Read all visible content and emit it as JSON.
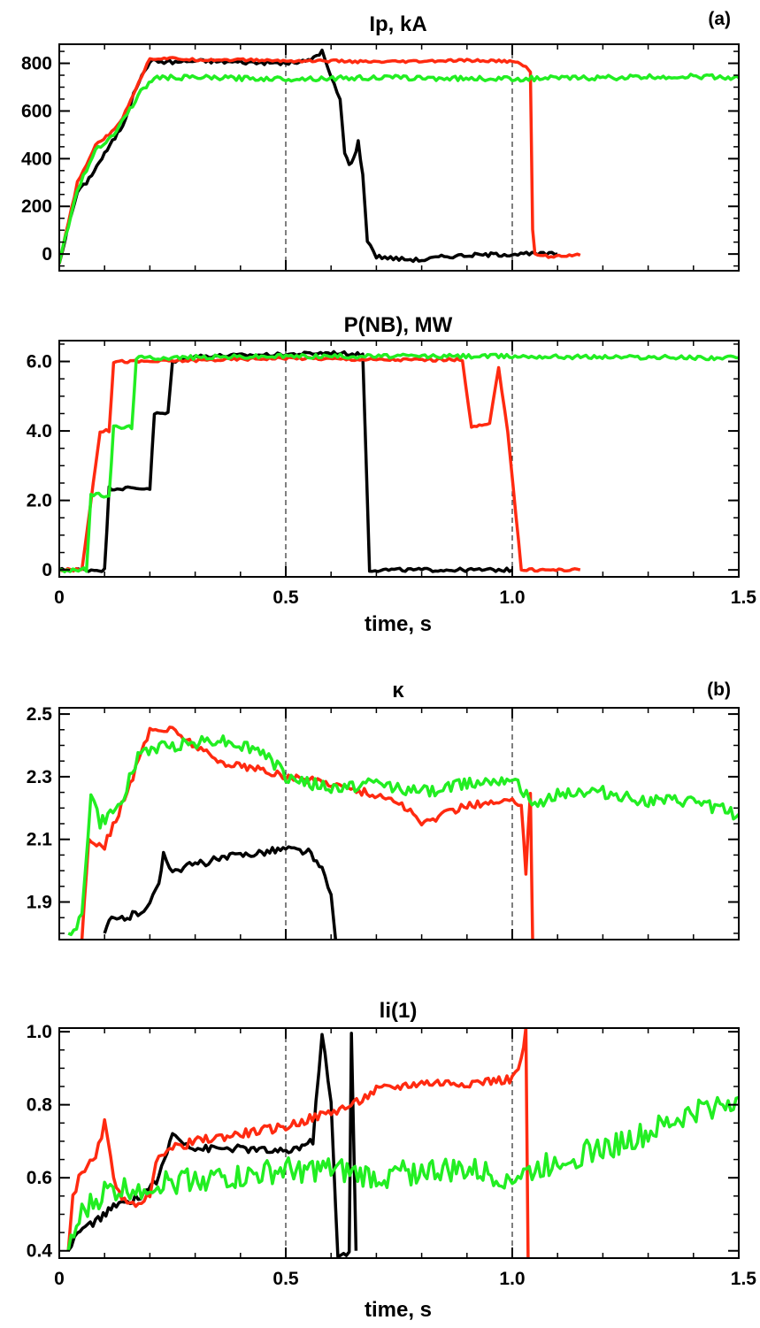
{
  "colors": {
    "black": "#000000",
    "red": "#ff2a10",
    "green": "#22ee22"
  },
  "groups": [
    {
      "label": "(a)",
      "xlabel": "time, s"
    },
    {
      "label": "(b)",
      "xlabel": "time, s"
    }
  ],
  "chart_data": [
    {
      "type": "line",
      "title": "Ip, kA",
      "xlim": [
        0,
        1.5
      ],
      "ylim": [
        -70,
        880
      ],
      "yticks": [
        0,
        200,
        400,
        600,
        800
      ],
      "ytick_labels": [
        "0",
        "200",
        "400",
        "600",
        "800"
      ],
      "xticks": [
        0,
        0.5,
        1.0,
        1.5
      ],
      "xtick_labels": [],
      "vlines": [
        0.5,
        1.0
      ],
      "series": [
        {
          "color": "black",
          "noise": 8,
          "points": [
            [
              0,
              -40
            ],
            [
              0.02,
              120
            ],
            [
              0.04,
              260
            ],
            [
              0.06,
              300
            ],
            [
              0.1,
              420
            ],
            [
              0.14,
              540
            ],
            [
              0.17,
              700
            ],
            [
              0.2,
              810
            ],
            [
              0.25,
              805
            ],
            [
              0.3,
              810
            ],
            [
              0.4,
              805
            ],
            [
              0.5,
              800
            ],
            [
              0.55,
              810
            ],
            [
              0.58,
              850
            ],
            [
              0.6,
              740
            ],
            [
              0.62,
              650
            ],
            [
              0.63,
              420
            ],
            [
              0.64,
              380
            ],
            [
              0.65,
              400
            ],
            [
              0.66,
              470
            ],
            [
              0.67,
              330
            ],
            [
              0.68,
              60
            ],
            [
              0.7,
              -10
            ],
            [
              0.75,
              -20
            ],
            [
              0.8,
              -25
            ],
            [
              0.85,
              -10
            ],
            [
              0.9,
              -5
            ],
            [
              1.0,
              0
            ],
            [
              1.05,
              0
            ],
            [
              1.1,
              0
            ]
          ]
        },
        {
          "color": "red",
          "noise": 5,
          "points": [
            [
              0,
              -40
            ],
            [
              0.02,
              130
            ],
            [
              0.04,
              300
            ],
            [
              0.06,
              370
            ],
            [
              0.08,
              460
            ],
            [
              0.11,
              500
            ],
            [
              0.14,
              570
            ],
            [
              0.17,
              700
            ],
            [
              0.2,
              820
            ],
            [
              0.25,
              820
            ],
            [
              0.3,
              815
            ],
            [
              0.4,
              815
            ],
            [
              0.5,
              810
            ],
            [
              0.6,
              810
            ],
            [
              0.7,
              805
            ],
            [
              0.8,
              808
            ],
            [
              0.9,
              812
            ],
            [
              1.0,
              808
            ],
            [
              1.03,
              790
            ],
            [
              1.04,
              760
            ],
            [
              1.045,
              100
            ],
            [
              1.05,
              0
            ],
            [
              1.08,
              -10
            ],
            [
              1.12,
              -5
            ],
            [
              1.15,
              -5
            ]
          ]
        },
        {
          "color": "green",
          "noise": 10,
          "points": [
            [
              0,
              -40
            ],
            [
              0.02,
              120
            ],
            [
              0.04,
              270
            ],
            [
              0.06,
              350
            ],
            [
              0.08,
              440
            ],
            [
              0.12,
              500
            ],
            [
              0.15,
              590
            ],
            [
              0.18,
              680
            ],
            [
              0.21,
              740
            ],
            [
              0.3,
              740
            ],
            [
              0.5,
              735
            ],
            [
              0.7,
              740
            ],
            [
              1.0,
              735
            ],
            [
              1.2,
              740
            ],
            [
              1.4,
              745
            ],
            [
              1.5,
              740
            ]
          ]
        }
      ]
    },
    {
      "type": "line",
      "title": "P(NB), MW",
      "xlim": [
        0,
        1.5
      ],
      "ylim": [
        -0.2,
        6.6
      ],
      "yticks": [
        0,
        2.0,
        4.0,
        6.0
      ],
      "ytick_labels": [
        "0",
        "2.0",
        "4.0",
        "6.0"
      ],
      "xticks": [
        0,
        0.5,
        1.0,
        1.5
      ],
      "xtick_labels": [
        "0",
        "0.5",
        "1.0",
        "1.5"
      ],
      "vlines": [
        0.5,
        1.0
      ],
      "series": [
        {
          "color": "black",
          "noise": 0.05,
          "points": [
            [
              0,
              0
            ],
            [
              0.1,
              0
            ],
            [
              0.11,
              2.35
            ],
            [
              0.2,
              2.35
            ],
            [
              0.21,
              4.5
            ],
            [
              0.24,
              4.5
            ],
            [
              0.25,
              6.0
            ],
            [
              0.3,
              6.15
            ],
            [
              0.5,
              6.2
            ],
            [
              0.6,
              6.25
            ],
            [
              0.67,
              6.2
            ],
            [
              0.685,
              0
            ],
            [
              0.8,
              0
            ],
            [
              1.0,
              0
            ]
          ]
        },
        {
          "color": "red",
          "noise": 0.04,
          "points": [
            [
              0,
              0
            ],
            [
              0.05,
              0
            ],
            [
              0.07,
              2.0
            ],
            [
              0.08,
              3.0
            ],
            [
              0.09,
              4.0
            ],
            [
              0.11,
              4.0
            ],
            [
              0.12,
              6.0
            ],
            [
              0.2,
              6.0
            ],
            [
              0.5,
              6.1
            ],
            [
              0.7,
              6.05
            ],
            [
              0.89,
              6.05
            ],
            [
              0.91,
              4.1
            ],
            [
              0.95,
              4.2
            ],
            [
              0.97,
              5.8
            ],
            [
              0.99,
              4.0
            ],
            [
              1.02,
              0
            ],
            [
              1.15,
              0
            ]
          ]
        },
        {
          "color": "green",
          "noise": 0.06,
          "points": [
            [
              0,
              0
            ],
            [
              0.06,
              0
            ],
            [
              0.07,
              2.15
            ],
            [
              0.11,
              2.15
            ],
            [
              0.12,
              4.1
            ],
            [
              0.16,
              4.1
            ],
            [
              0.17,
              6.1
            ],
            [
              0.5,
              6.15
            ],
            [
              1.0,
              6.15
            ],
            [
              1.5,
              6.1
            ]
          ]
        }
      ]
    },
    {
      "type": "line",
      "title": "κ",
      "xlim": [
        0,
        1.5
      ],
      "ylim": [
        1.78,
        2.52
      ],
      "yticks": [
        1.9,
        2.1,
        2.3,
        2.5
      ],
      "ytick_labels": [
        "1.9",
        "2.1",
        "2.3",
        "2.5"
      ],
      "xticks": [
        0,
        0.5,
        1.0,
        1.5
      ],
      "xtick_labels": [],
      "vlines": [
        0.5,
        1.0
      ],
      "series": [
        {
          "color": "black",
          "noise": 0.012,
          "points": [
            [
              0.1,
              1.8
            ],
            [
              0.11,
              1.84
            ],
            [
              0.15,
              1.85
            ],
            [
              0.18,
              1.87
            ],
            [
              0.2,
              1.9
            ],
            [
              0.22,
              1.95
            ],
            [
              0.23,
              2.06
            ],
            [
              0.25,
              2.0
            ],
            [
              0.3,
              2.02
            ],
            [
              0.4,
              2.05
            ],
            [
              0.5,
              2.07
            ],
            [
              0.55,
              2.06
            ],
            [
              0.58,
              2.0
            ],
            [
              0.6,
              1.92
            ],
            [
              0.61,
              1.78
            ]
          ]
        },
        {
          "color": "red",
          "noise": 0.012,
          "points": [
            [
              0.05,
              1.78
            ],
            [
              0.065,
              2.1
            ],
            [
              0.1,
              2.08
            ],
            [
              0.15,
              2.25
            ],
            [
              0.2,
              2.45
            ],
            [
              0.25,
              2.45
            ],
            [
              0.3,
              2.4
            ],
            [
              0.35,
              2.35
            ],
            [
              0.45,
              2.32
            ],
            [
              0.5,
              2.3
            ],
            [
              0.6,
              2.28
            ],
            [
              0.65,
              2.26
            ],
            [
              0.75,
              2.22
            ],
            [
              0.8,
              2.15
            ],
            [
              0.85,
              2.18
            ],
            [
              0.9,
              2.21
            ],
            [
              1.0,
              2.22
            ],
            [
              1.02,
              2.22
            ],
            [
              1.03,
              2.0
            ],
            [
              1.04,
              2.25
            ],
            [
              1.045,
              1.78
            ]
          ]
        },
        {
          "color": "green",
          "noise": 0.02,
          "points": [
            [
              0.02,
              1.8
            ],
            [
              0.05,
              1.85
            ],
            [
              0.07,
              2.25
            ],
            [
              0.09,
              2.15
            ],
            [
              0.13,
              2.2
            ],
            [
              0.18,
              2.38
            ],
            [
              0.25,
              2.4
            ],
            [
              0.35,
              2.42
            ],
            [
              0.45,
              2.38
            ],
            [
              0.5,
              2.3
            ],
            [
              0.6,
              2.26
            ],
            [
              0.7,
              2.28
            ],
            [
              0.8,
              2.25
            ],
            [
              0.9,
              2.28
            ],
            [
              1.0,
              2.3
            ],
            [
              1.05,
              2.2
            ],
            [
              1.1,
              2.25
            ],
            [
              1.2,
              2.25
            ],
            [
              1.3,
              2.22
            ],
            [
              1.4,
              2.22
            ],
            [
              1.5,
              2.18
            ]
          ]
        }
      ]
    },
    {
      "type": "line",
      "title": "li(1)",
      "xlim": [
        0,
        1.5
      ],
      "ylim": [
        0.38,
        1.01
      ],
      "yticks": [
        0.4,
        0.6,
        0.8,
        1.0
      ],
      "ytick_labels": [
        "0.4",
        "0.6",
        "0.8",
        "1.0"
      ],
      "xticks": [
        0,
        0.5,
        1.0,
        1.5
      ],
      "xtick_labels": [
        "0",
        "0.5",
        "1.0",
        "1.5"
      ],
      "vlines": [
        0.5,
        1.0
      ],
      "series": [
        {
          "color": "black",
          "noise": 0.01,
          "points": [
            [
              0.02,
              0.4
            ],
            [
              0.04,
              0.45
            ],
            [
              0.08,
              0.48
            ],
            [
              0.12,
              0.52
            ],
            [
              0.18,
              0.55
            ],
            [
              0.22,
              0.6
            ],
            [
              0.25,
              0.72
            ],
            [
              0.3,
              0.68
            ],
            [
              0.4,
              0.68
            ],
            [
              0.5,
              0.67
            ],
            [
              0.56,
              0.7
            ],
            [
              0.58,
              1.0
            ],
            [
              0.6,
              0.8
            ],
            [
              0.615,
              0.38
            ],
            [
              0.64,
              0.4
            ],
            [
              0.645,
              1.0
            ],
            [
              0.655,
              0.4
            ]
          ]
        },
        {
          "color": "red",
          "noise": 0.012,
          "points": [
            [
              0.02,
              0.4
            ],
            [
              0.03,
              0.55
            ],
            [
              0.05,
              0.62
            ],
            [
              0.08,
              0.65
            ],
            [
              0.1,
              0.75
            ],
            [
              0.12,
              0.6
            ],
            [
              0.15,
              0.52
            ],
            [
              0.2,
              0.55
            ],
            [
              0.22,
              0.67
            ],
            [
              0.25,
              0.68
            ],
            [
              0.3,
              0.7
            ],
            [
              0.4,
              0.72
            ],
            [
              0.5,
              0.74
            ],
            [
              0.6,
              0.78
            ],
            [
              0.65,
              0.8
            ],
            [
              0.7,
              0.84
            ],
            [
              0.8,
              0.86
            ],
            [
              0.9,
              0.86
            ],
            [
              1.0,
              0.87
            ],
            [
              1.02,
              0.92
            ],
            [
              1.03,
              1.0
            ],
            [
              1.035,
              0.38
            ]
          ]
        },
        {
          "color": "green",
          "noise": 0.035,
          "points": [
            [
              0.02,
              0.4
            ],
            [
              0.05,
              0.5
            ],
            [
              0.1,
              0.56
            ],
            [
              0.15,
              0.57
            ],
            [
              0.2,
              0.58
            ],
            [
              0.3,
              0.6
            ],
            [
              0.4,
              0.6
            ],
            [
              0.5,
              0.62
            ],
            [
              0.6,
              0.62
            ],
            [
              0.7,
              0.6
            ],
            [
              0.8,
              0.62
            ],
            [
              0.9,
              0.62
            ],
            [
              1.0,
              0.6
            ],
            [
              1.05,
              0.62
            ],
            [
              1.1,
              0.65
            ],
            [
              1.2,
              0.68
            ],
            [
              1.3,
              0.72
            ],
            [
              1.4,
              0.78
            ],
            [
              1.5,
              0.82
            ]
          ]
        }
      ]
    }
  ]
}
